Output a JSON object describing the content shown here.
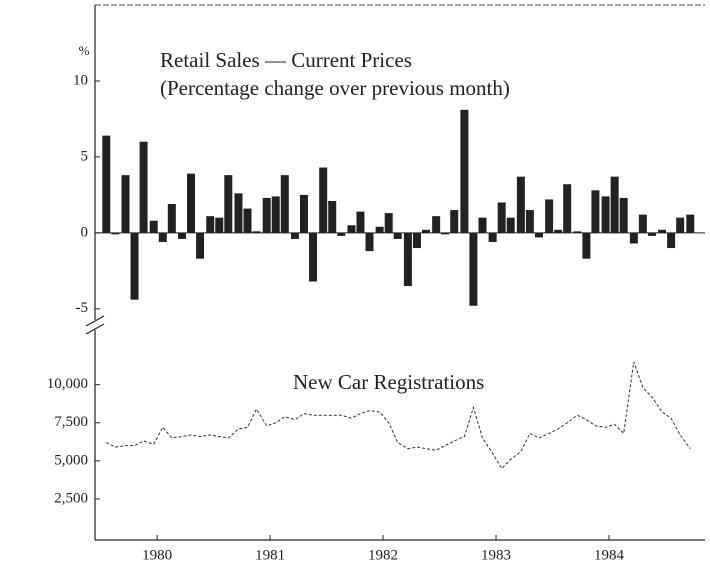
{
  "chart_data": [
    {
      "type": "bar",
      "title": "Retail Sales — Current Prices",
      "subtitle": "(Percentage change over previous month)",
      "y_label": "%",
      "x": [
        1979.55,
        1979.63,
        1979.72,
        1979.8,
        1979.88,
        1979.97,
        1980.05,
        1980.13,
        1980.22,
        1980.3,
        1980.38,
        1980.47,
        1980.55,
        1980.63,
        1980.72,
        1980.8,
        1980.88,
        1980.97,
        1981.05,
        1981.13,
        1981.22,
        1981.3,
        1981.38,
        1981.47,
        1981.55,
        1981.63,
        1981.72,
        1981.8,
        1981.88,
        1981.97,
        1982.05,
        1982.13,
        1982.22,
        1982.3,
        1982.38,
        1982.47,
        1982.55,
        1982.63,
        1982.72,
        1982.8,
        1982.88,
        1982.97,
        1983.05,
        1983.13,
        1983.22,
        1983.3,
        1983.38,
        1983.47,
        1983.55,
        1983.63,
        1983.72,
        1983.8,
        1983.88,
        1983.97,
        1984.05,
        1984.13,
        1984.22,
        1984.3,
        1984.38,
        1984.47,
        1984.55,
        1984.63,
        1984.72
      ],
      "values": [
        6.4,
        -0.1,
        3.8,
        -4.4,
        6.0,
        0.8,
        -0.6,
        1.9,
        -0.4,
        3.9,
        -1.7,
        1.1,
        1.0,
        3.8,
        2.6,
        1.6,
        0.1,
        2.3,
        2.4,
        3.8,
        -0.4,
        2.5,
        -3.2,
        4.3,
        2.1,
        -0.2,
        0.5,
        1.4,
        -1.2,
        0.4,
        1.3,
        -0.4,
        -3.5,
        -1.0,
        0.2,
        1.1,
        -0.1,
        1.5,
        8.1,
        -4.8,
        1.0,
        -0.6,
        2.0,
        1.0,
        3.7,
        1.5,
        -0.3,
        2.2,
        0.2,
        3.2,
        0.1,
        -1.7,
        2.8,
        2.4,
        3.7,
        2.3,
        -0.7,
        1.2,
        -0.2,
        0.2,
        -1.0,
        1.0,
        1.2
      ],
      "color": "#222222",
      "xlim": [
        1979.45,
        1984.85
      ],
      "ylim": [
        -6,
        15
      ],
      "yticks": [
        10,
        5,
        0,
        -5
      ]
    },
    {
      "type": "line",
      "title": "New Car Registrations",
      "x": [
        1979.55,
        1979.63,
        1979.72,
        1979.8,
        1979.88,
        1979.97,
        1980.05,
        1980.13,
        1980.22,
        1980.3,
        1980.38,
        1980.47,
        1980.55,
        1980.63,
        1980.72,
        1980.8,
        1980.88,
        1980.97,
        1981.05,
        1981.13,
        1981.22,
        1981.3,
        1981.38,
        1981.47,
        1981.55,
        1981.63,
        1981.72,
        1981.8,
        1981.88,
        1981.97,
        1982.05,
        1982.13,
        1982.22,
        1982.3,
        1982.38,
        1982.47,
        1982.55,
        1982.63,
        1982.72,
        1982.8,
        1982.88,
        1982.97,
        1983.05,
        1983.13,
        1983.22,
        1983.3,
        1983.38,
        1983.47,
        1983.55,
        1983.63,
        1983.72,
        1983.8,
        1983.88,
        1983.97,
        1984.05,
        1984.13,
        1984.22,
        1984.3,
        1984.38,
        1984.47,
        1984.55,
        1984.63,
        1984.72
      ],
      "values": [
        6200,
        5900,
        6000,
        6000,
        6300,
        6100,
        7200,
        6500,
        6600,
        6700,
        6600,
        6700,
        6600,
        6500,
        7100,
        7200,
        8400,
        7300,
        7500,
        7900,
        7700,
        8100,
        8000,
        8000,
        8000,
        8000,
        7800,
        8100,
        8300,
        8200,
        7500,
        6200,
        5800,
        5900,
        5800,
        5700,
        6000,
        6300,
        6600,
        8500,
        6500,
        5500,
        4500,
        5100,
        5600,
        6800,
        6500,
        6800,
        7100,
        7500,
        8000,
        7700,
        7300,
        7200,
        7400,
        6800,
        11500,
        9800,
        9200,
        8200,
        7800,
        6700,
        5800
      ],
      "color": "#333333",
      "xlim": [
        1979.45,
        1984.85
      ],
      "ylim": [
        0,
        13000
      ],
      "yticks": [
        {
          "value": 10000,
          "label": "10,000"
        },
        {
          "value": 7500,
          "label": "7,500"
        },
        {
          "value": 5000,
          "label": "5,000"
        },
        {
          "value": 2500,
          "label": "2,500"
        }
      ],
      "xticks": [
        1980,
        1981,
        1982,
        1983,
        1984
      ]
    }
  ]
}
